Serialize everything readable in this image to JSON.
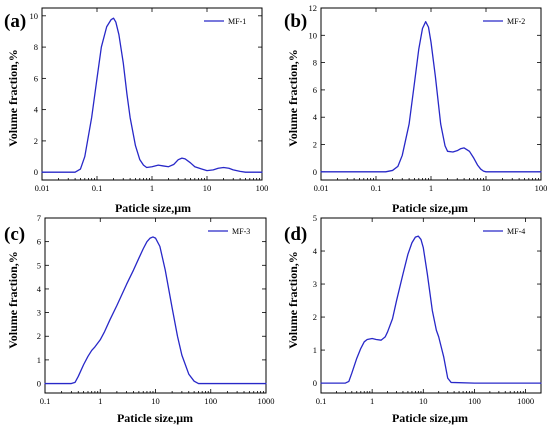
{
  "colors": {
    "series": "#2828c8",
    "axis": "#000000"
  },
  "chart_data": [
    {
      "type": "line",
      "panel_label": "(a)",
      "xlabel": "Paticle size,μm",
      "ylabel": "Volume fraction,%",
      "xscale": "log",
      "xlim": [
        0.01,
        100
      ],
      "ylim": [
        -0.5,
        10.5
      ],
      "xticks": [
        0.01,
        0.1,
        1,
        10,
        100
      ],
      "xtick_labels": [
        "0.01",
        "0.1",
        "1",
        "10",
        "100"
      ],
      "yticks": [
        0,
        2,
        4,
        6,
        8,
        10
      ],
      "ytick_labels": [
        "0",
        "2",
        "4",
        "6",
        "8",
        "10"
      ],
      "legend_position": "top-right",
      "series": [
        {
          "name": "MF-1",
          "x": [
            0.01,
            0.04,
            0.05,
            0.06,
            0.08,
            0.1,
            0.12,
            0.15,
            0.18,
            0.2,
            0.22,
            0.25,
            0.3,
            0.35,
            0.4,
            0.5,
            0.6,
            0.7,
            0.8,
            1.0,
            1.3,
            1.6,
            2.0,
            2.5,
            3.0,
            3.5,
            4.0,
            5.0,
            6.0,
            8.0,
            10,
            13,
            16,
            20,
            25,
            30,
            40,
            50,
            100
          ],
          "y": [
            0,
            0,
            0.2,
            1.0,
            3.5,
            6.0,
            8.0,
            9.3,
            9.75,
            9.85,
            9.6,
            8.8,
            7.0,
            5.0,
            3.5,
            1.7,
            0.8,
            0.45,
            0.3,
            0.35,
            0.45,
            0.4,
            0.35,
            0.5,
            0.8,
            0.9,
            0.85,
            0.6,
            0.35,
            0.2,
            0.1,
            0.15,
            0.25,
            0.3,
            0.25,
            0.15,
            0.05,
            0,
            0
          ]
        }
      ]
    },
    {
      "type": "line",
      "panel_label": "(b)",
      "xlabel": "Paticle size,μm",
      "ylabel": "Volume fraction,%",
      "xscale": "log",
      "xlim": [
        0.01,
        100
      ],
      "ylim": [
        -0.6,
        12
      ],
      "xticks": [
        0.01,
        0.1,
        1,
        10,
        100
      ],
      "xtick_labels": [
        "0.01",
        "0.1",
        "1",
        "10",
        "100"
      ],
      "yticks": [
        0,
        2,
        4,
        6,
        8,
        10,
        12
      ],
      "ytick_labels": [
        "0",
        "2",
        "4",
        "6",
        "8",
        "10",
        "12"
      ],
      "legend_position": "top-right",
      "series": [
        {
          "name": "MF-2",
          "x": [
            0.01,
            0.15,
            0.2,
            0.25,
            0.3,
            0.4,
            0.5,
            0.6,
            0.7,
            0.8,
            0.9,
            1.0,
            1.2,
            1.5,
            1.8,
            2.0,
            2.5,
            3.0,
            3.5,
            4.0,
            5.0,
            6.0,
            7.0,
            8.0,
            9.0,
            10,
            100
          ],
          "y": [
            0,
            0,
            0.1,
            0.4,
            1.2,
            3.5,
            6.5,
            9.0,
            10.5,
            11.0,
            10.6,
            9.5,
            7.0,
            3.5,
            1.9,
            1.5,
            1.45,
            1.55,
            1.7,
            1.75,
            1.5,
            1.0,
            0.5,
            0.2,
            0.05,
            0,
            0
          ]
        }
      ]
    },
    {
      "type": "line",
      "panel_label": "(c)",
      "xlabel": "Paticle size,μm",
      "ylabel": "Volume fraction,%",
      "xscale": "log",
      "xlim": [
        0.1,
        1000
      ],
      "ylim": [
        -0.4,
        7
      ],
      "xticks": [
        0.1,
        1,
        10,
        100,
        1000
      ],
      "xtick_labels": [
        "0.1",
        "1",
        "10",
        "100",
        "1000"
      ],
      "yticks": [
        0,
        1,
        2,
        3,
        4,
        5,
        6,
        7
      ],
      "ytick_labels": [
        "0",
        "1",
        "2",
        "3",
        "4",
        "5",
        "6",
        "7"
      ],
      "legend_position": "top-right",
      "series": [
        {
          "name": "MF-3",
          "x": [
            0.1,
            0.3,
            0.35,
            0.4,
            0.5,
            0.6,
            0.7,
            0.8,
            1.0,
            1.2,
            1.5,
            2.0,
            3.0,
            4.0,
            5.0,
            6.0,
            7.0,
            8.0,
            9.0,
            10,
            12,
            15,
            20,
            25,
            30,
            40,
            50,
            60,
            100,
            1000
          ],
          "y": [
            0,
            0,
            0.05,
            0.3,
            0.8,
            1.15,
            1.4,
            1.55,
            1.85,
            2.2,
            2.7,
            3.3,
            4.2,
            4.8,
            5.3,
            5.7,
            6.0,
            6.15,
            6.2,
            6.15,
            5.8,
            4.8,
            3.2,
            2.0,
            1.2,
            0.4,
            0.1,
            0,
            0,
            0
          ]
        }
      ]
    },
    {
      "type": "line",
      "panel_label": "(d)",
      "xlabel": "Paticle size,μm",
      "ylabel": "Volume fraction,%",
      "xscale": "log",
      "xlim": [
        0.1,
        2000
      ],
      "ylim": [
        -0.3,
        5
      ],
      "xticks": [
        0.1,
        1,
        10,
        100,
        1000
      ],
      "xtick_labels": [
        "0.1",
        "1",
        "10",
        "100",
        "1000"
      ],
      "yticks": [
        0,
        1,
        2,
        3,
        4,
        5
      ],
      "ytick_labels": [
        "0",
        "1",
        "2",
        "3",
        "4",
        "5"
      ],
      "legend_position": "top-right",
      "series": [
        {
          "name": "MF-4",
          "x": [
            0.1,
            0.3,
            0.35,
            0.4,
            0.5,
            0.6,
            0.7,
            0.8,
            1.0,
            1.2,
            1.5,
            1.8,
            2.0,
            2.5,
            3.0,
            4.0,
            5.0,
            6.0,
            7.0,
            8.0,
            9.0,
            10,
            12,
            15,
            18,
            20,
            25,
            30,
            35,
            100,
            2000
          ],
          "y": [
            0,
            0,
            0.05,
            0.3,
            0.75,
            1.05,
            1.25,
            1.32,
            1.35,
            1.32,
            1.3,
            1.4,
            1.55,
            1.95,
            2.5,
            3.3,
            3.9,
            4.25,
            4.42,
            4.45,
            4.35,
            4.1,
            3.3,
            2.2,
            1.6,
            1.4,
            0.8,
            0.15,
            0.02,
            0,
            0
          ]
        }
      ]
    }
  ]
}
